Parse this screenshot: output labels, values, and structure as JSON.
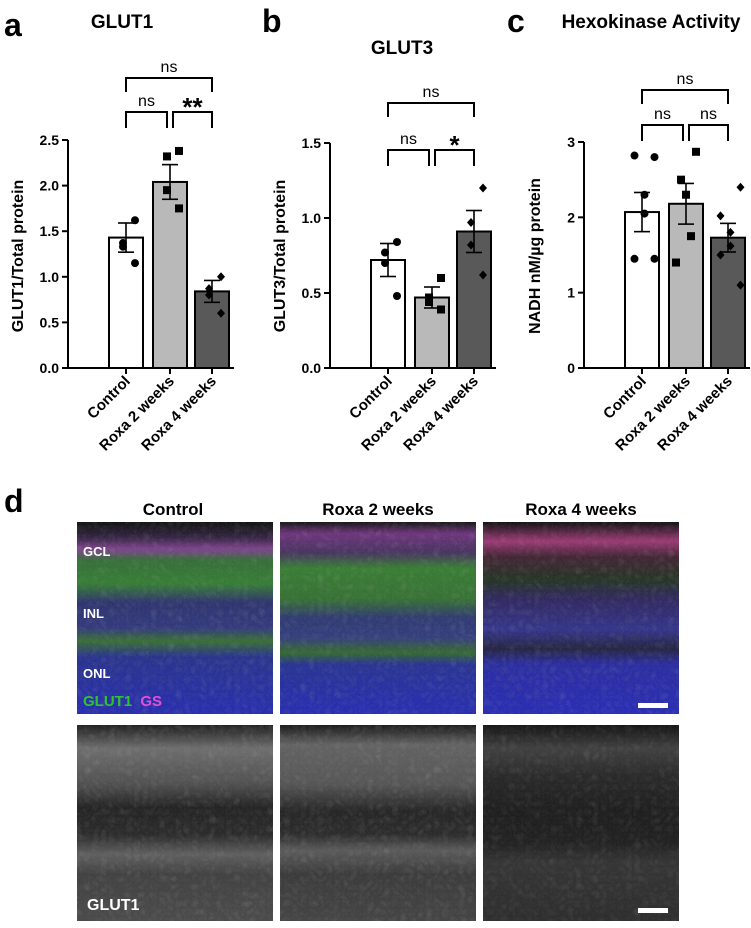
{
  "chart_data": [
    {
      "type": "bar",
      "panel_letter": "a",
      "title": "GLUT1",
      "ylabel": "GLUT1/Total protein",
      "ylim": [
        0,
        2.5
      ],
      "yticks": [
        "0.0",
        "0.5",
        "1.0",
        "1.5",
        "2.0",
        "2.5"
      ],
      "categories": [
        "Control",
        "Roxa 2 weeks",
        "Roxa 4 weeks"
      ],
      "values": [
        1.43,
        2.04,
        0.84
      ],
      "sem": [
        0.16,
        0.19,
        0.12
      ],
      "bar_colors": [
        "#ffffff",
        "#b9b9b9",
        "#595959"
      ],
      "points": [
        [
          1.62,
          1.37,
          1.33,
          1.15
        ],
        [
          2.38,
          2.32,
          1.95,
          1.75
        ],
        [
          1.0,
          0.87,
          0.8,
          0.6
        ]
      ],
      "markers": [
        "circle",
        "square",
        "diamond"
      ],
      "comparisons": [
        {
          "from": 0,
          "to": 2,
          "label": "ns",
          "level": 2
        },
        {
          "from": 0,
          "to": 1,
          "label": "ns",
          "level": 1
        },
        {
          "from": 1,
          "to": 2,
          "label": "**",
          "level": 1
        }
      ]
    },
    {
      "type": "bar",
      "panel_letter": "b",
      "title": "GLUT3",
      "ylabel": "GLUT3/Total protein",
      "ylim": [
        0,
        1.5
      ],
      "yticks": [
        "0.0",
        "0.5",
        "1.0",
        "1.5"
      ],
      "categories": [
        "Control",
        "Roxa 2 weeks",
        "Roxa 4 weeks"
      ],
      "values": [
        0.72,
        0.47,
        0.91
      ],
      "sem": [
        0.11,
        0.07,
        0.14
      ],
      "bar_colors": [
        "#ffffff",
        "#b9b9b9",
        "#595959"
      ],
      "points": [
        [
          0.84,
          0.77,
          0.7,
          0.48
        ],
        [
          0.6,
          0.47,
          0.44,
          0.39
        ],
        [
          1.2,
          0.97,
          0.82,
          0.62
        ]
      ],
      "markers": [
        "circle",
        "square",
        "diamond"
      ],
      "comparisons": [
        {
          "from": 0,
          "to": 2,
          "label": "ns",
          "level": 2
        },
        {
          "from": 0,
          "to": 1,
          "label": "ns",
          "level": 1
        },
        {
          "from": 1,
          "to": 2,
          "label": "*",
          "level": 1
        }
      ]
    },
    {
      "type": "bar",
      "panel_letter": "c",
      "title": "Hexokinase Activity",
      "ylabel": "NADH nM/µg protein",
      "ylim": [
        0,
        3
      ],
      "yticks": [
        "0",
        "1",
        "2",
        "3"
      ],
      "categories": [
        "Control",
        "Roxa 2 weeks",
        "Roxa 4 weeks"
      ],
      "values": [
        2.07,
        2.18,
        1.73
      ],
      "sem": [
        0.26,
        0.27,
        0.19
      ],
      "bar_colors": [
        "#ffffff",
        "#b9b9b9",
        "#595959"
      ],
      "points": [
        [
          2.8,
          2.82,
          2.3,
          2.05,
          1.45,
          1.45
        ],
        [
          2.87,
          2.5,
          2.3,
          1.75,
          1.4
        ],
        [
          2.4,
          2.02,
          1.8,
          1.62,
          1.5,
          1.1
        ]
      ],
      "markers": [
        "circle",
        "square",
        "diamond"
      ],
      "comparisons": [
        {
          "from": 0,
          "to": 2,
          "label": "ns",
          "level": 2
        },
        {
          "from": 0,
          "to": 1,
          "label": "ns",
          "level": 1
        },
        {
          "from": 1,
          "to": 2,
          "label": "ns",
          "level": 1
        }
      ]
    }
  ],
  "micrographs": {
    "panel_letter": "d",
    "column_titles": [
      "Control",
      "Roxa 2 weeks",
      "Roxa 4 weeks"
    ],
    "layer_labels": [
      "GCL",
      "INL",
      "ONL"
    ],
    "stain_legend": {
      "glut1": "GLUT1",
      "gs": "GS"
    },
    "bottom_label": "GLUT1",
    "colors": {
      "glut1": "#2ec430",
      "gs": "#e24fd9",
      "nuclei": "#2a28c8"
    }
  }
}
